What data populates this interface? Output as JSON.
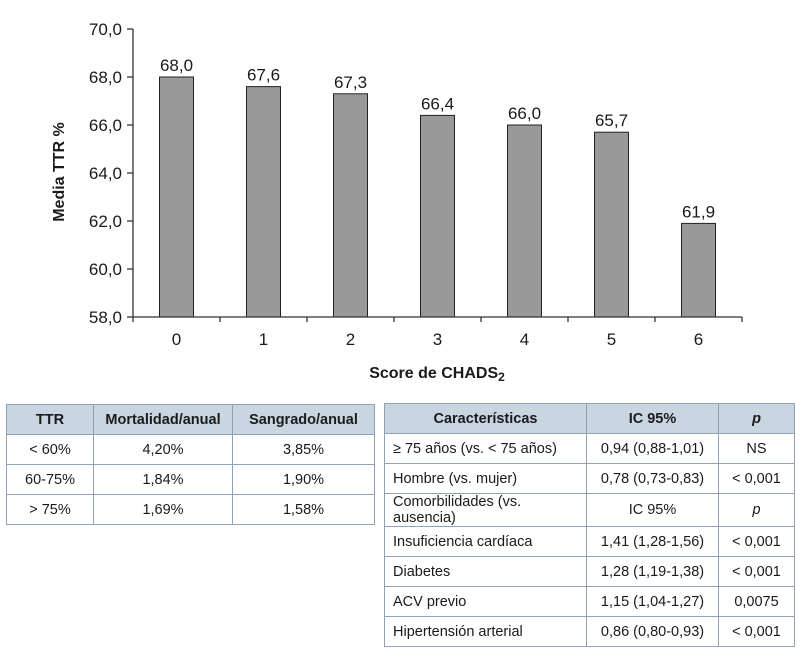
{
  "chart_data": {
    "type": "bar",
    "categories": [
      "0",
      "1",
      "2",
      "3",
      "4",
      "5",
      "6"
    ],
    "values": [
      68.0,
      67.6,
      67.3,
      66.4,
      66.0,
      65.7,
      61.9
    ],
    "value_labels": [
      "68,0",
      "67,6",
      "67,3",
      "66,4",
      "66,0",
      "65,7",
      "61,9"
    ],
    "ylabel": "Media TTR %",
    "xlabel_main": "Score de CHADS",
    "xlabel_sub": "2",
    "ylim": [
      58.0,
      70.0
    ],
    "yticks": [
      58.0,
      60.0,
      62.0,
      64.0,
      66.0,
      68.0,
      70.0
    ],
    "ytick_labels": [
      "58,0",
      "60,0",
      "62,0",
      "64,0",
      "66,0",
      "68,0",
      "70,0"
    ],
    "bar_color": "#999999",
    "grid": false
  },
  "table_ttr": {
    "headers": [
      "TTR",
      "Mortalidad/anual",
      "Sangrado/anual"
    ],
    "rows": [
      [
        "< 60%",
        "4,20%",
        "3,85%"
      ],
      [
        "60-75%",
        "1,84%",
        "1,90%"
      ],
      [
        "> 75%",
        "1,69%",
        "1,58%"
      ]
    ]
  },
  "table_caracteristicas": {
    "headers": [
      "Características",
      "IC 95%",
      "p"
    ],
    "rows": [
      [
        "≥ 75 años (vs. < 75 años)",
        "0,94 (0,88-1,01)",
        "NS"
      ],
      [
        "Hombre (vs. mujer)",
        "0,78 (0,73-0,83)",
        "< 0,001"
      ],
      [
        "Comorbilidades (vs. ausencia)",
        "IC 95%",
        "p"
      ],
      [
        "Insuficiencia cardíaca",
        "1,41 (1,28-1,56)",
        "< 0,001"
      ],
      [
        "Diabetes",
        "1,28 (1,19-1,38)",
        "< 0,001"
      ],
      [
        "ACV previo",
        "1,15 (1,04-1,27)",
        "0,0075"
      ],
      [
        "Hipertensión arterial",
        "0,86 (0,80-0,93)",
        "< 0,001"
      ]
    ]
  },
  "colors": {
    "header_bg": "#c9d6e2",
    "table_border": "#8fa3b5",
    "bar": "#999999"
  }
}
